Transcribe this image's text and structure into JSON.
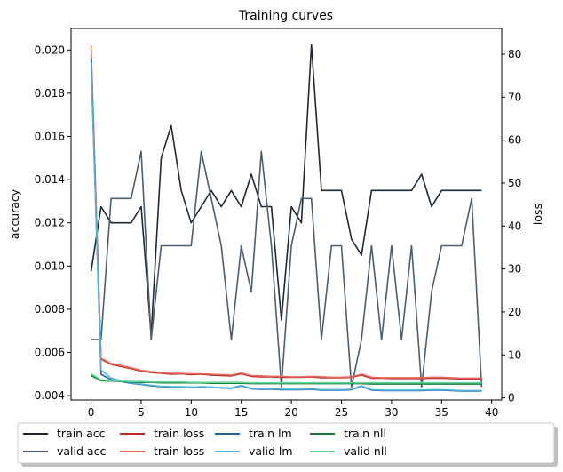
{
  "chart_data": {
    "type": "line",
    "title": "Training curves",
    "xlabel": "",
    "ylabel_left": "accuracy",
    "ylabel_right": "loss",
    "xlim": [
      -2,
      41
    ],
    "ylim_left": [
      0.0038,
      0.021
    ],
    "ylim_right": [
      -0.5,
      86
    ],
    "x_ticks": [
      0,
      5,
      10,
      15,
      20,
      25,
      30,
      35,
      40
    ],
    "x_tick_labels": [
      "0",
      "5",
      "10",
      "15",
      "20",
      "25",
      "30",
      "35",
      "40"
    ],
    "y_left_ticks": [
      0.004,
      0.006,
      0.008,
      0.01,
      0.012,
      0.014,
      0.016,
      0.018,
      0.02
    ],
    "y_left_tick_labels": [
      "0.004",
      "0.006",
      "0.008",
      "0.010",
      "0.012",
      "0.014",
      "0.016",
      "0.018",
      "0.020"
    ],
    "y_right_ticks": [
      0,
      10,
      20,
      30,
      40,
      50,
      60,
      70,
      80
    ],
    "y_right_tick_labels": [
      "0",
      "10",
      "20",
      "30",
      "40",
      "50",
      "60",
      "70",
      "80"
    ],
    "grid": false,
    "legend_position": "bottom-outside",
    "x": [
      0,
      1,
      2,
      3,
      4,
      5,
      6,
      7,
      8,
      9,
      10,
      11,
      12,
      13,
      14,
      15,
      16,
      17,
      18,
      19,
      20,
      21,
      22,
      23,
      24,
      25,
      26,
      27,
      28,
      29,
      30,
      31,
      32,
      33,
      34,
      35,
      36,
      37,
      38,
      39
    ],
    "series": [
      {
        "name": "train acc",
        "axis": "left",
        "color": "#1f2a36",
        "values": [
          0.00975,
          0.01275,
          0.012,
          0.012,
          0.012,
          0.01275,
          0.0068,
          0.015,
          0.0165,
          0.0135,
          0.012,
          0.01275,
          0.0135,
          0.01275,
          0.0135,
          0.01275,
          0.01425,
          0.01275,
          0.01275,
          0.0075,
          0.01275,
          0.012,
          0.02025,
          0.0135,
          0.0135,
          0.0135,
          0.01125,
          0.0105,
          0.0135,
          0.0135,
          0.0135,
          0.0135,
          0.0135,
          0.01425,
          0.01275,
          0.0135,
          0.0135,
          0.0135,
          0.0135,
          0.0135
        ]
      },
      {
        "name": "valid acc",
        "axis": "left",
        "color": "#4d5e6e",
        "values": [
          0.0066,
          0.0066,
          0.01313,
          0.01313,
          0.01313,
          0.01531,
          0.0066,
          0.01094,
          0.01094,
          0.01094,
          0.01094,
          0.01531,
          0.01313,
          0.01094,
          0.0066,
          0.01094,
          0.0088,
          0.01531,
          0.01094,
          0.0044,
          0.01094,
          0.01313,
          0.01313,
          0.0066,
          0.01094,
          0.01094,
          0.0044,
          0.0066,
          0.01094,
          0.0066,
          0.01094,
          0.0066,
          0.01094,
          0.0044,
          0.0088,
          0.01094,
          0.01094,
          0.01094,
          0.01313,
          0.0044
        ]
      },
      {
        "name": "train loss",
        "axis": "right",
        "color": "#b52a25",
        "values": [
          80,
          9.0,
          7.8,
          7.3,
          6.8,
          6.2,
          5.9,
          5.7,
          5.5,
          5.6,
          5.4,
          5.5,
          5.3,
          5.2,
          5.1,
          5.6,
          5.0,
          4.9,
          4.9,
          4.8,
          4.8,
          4.8,
          4.9,
          4.7,
          4.7,
          4.7,
          4.8,
          5.3,
          4.6,
          4.6,
          4.5,
          4.5,
          4.5,
          4.5,
          4.6,
          4.6,
          4.5,
          4.4,
          4.4,
          4.4
        ]
      },
      {
        "name": "train loss",
        "axis": "right",
        "color": "#e8675d",
        "values": [
          82,
          9.2,
          8.0,
          7.5,
          7.0,
          6.4,
          6.1,
          5.8,
          5.7,
          5.7,
          5.6,
          5.6,
          5.5,
          5.4,
          5.3,
          5.8,
          5.2,
          5.1,
          5.0,
          5.0,
          4.9,
          4.9,
          5.0,
          4.9,
          4.8,
          4.8,
          4.9,
          5.5,
          4.8,
          4.7,
          4.7,
          4.7,
          4.7,
          4.7,
          4.8,
          4.8,
          4.7,
          4.6,
          4.6,
          4.6
        ]
      },
      {
        "name": "train lm",
        "axis": "right",
        "color": "#1f5fa8",
        "values": [
          79,
          5.5,
          4.2,
          3.8,
          3.4,
          3.1,
          2.8,
          2.6,
          2.5,
          2.5,
          2.4,
          2.5,
          2.4,
          2.3,
          2.2,
          2.8,
          2.1,
          2.0,
          2.0,
          1.9,
          1.9,
          1.9,
          2.0,
          1.8,
          1.8,
          1.8,
          1.9,
          2.7,
          1.8,
          1.7,
          1.7,
          1.7,
          1.7,
          1.7,
          1.8,
          1.8,
          1.7,
          1.6,
          1.6,
          1.6
        ]
      },
      {
        "name": "valid lm",
        "axis": "right",
        "color": "#4fb3d9",
        "values": [
          78,
          6.5,
          4.6,
          4.0,
          3.5,
          3.2,
          2.9,
          2.7,
          2.6,
          2.6,
          2.5,
          2.6,
          2.5,
          2.4,
          2.3,
          2.9,
          2.2,
          2.1,
          2.1,
          2.0,
          2.0,
          2.0,
          2.1,
          1.9,
          1.9,
          1.9,
          2.0,
          2.8,
          1.9,
          1.8,
          1.8,
          1.8,
          1.8,
          1.8,
          1.9,
          1.9,
          1.8,
          1.7,
          1.7,
          1.7
        ]
      },
      {
        "name": "train nll",
        "axis": "right",
        "color": "#1a7d3c",
        "values": [
          5.2,
          4.0,
          3.9,
          3.8,
          3.7,
          3.6,
          3.6,
          3.5,
          3.5,
          3.5,
          3.5,
          3.5,
          3.4,
          3.4,
          3.4,
          3.4,
          3.3,
          3.3,
          3.3,
          3.3,
          3.3,
          3.3,
          3.3,
          3.3,
          3.3,
          3.3,
          3.3,
          3.3,
          3.2,
          3.2,
          3.2,
          3.2,
          3.2,
          3.2,
          3.2,
          3.2,
          3.2,
          3.2,
          3.2,
          3.2
        ]
      },
      {
        "name": "valid nll",
        "axis": "right",
        "color": "#5fd69a",
        "values": [
          5.6,
          4.2,
          4.0,
          3.9,
          3.8,
          3.8,
          3.7,
          3.7,
          3.7,
          3.7,
          3.6,
          3.6,
          3.6,
          3.6,
          3.6,
          3.6,
          3.5,
          3.5,
          3.5,
          3.5,
          3.5,
          3.5,
          3.5,
          3.5,
          3.5,
          3.5,
          3.5,
          3.5,
          3.5,
          3.5,
          3.5,
          3.5,
          3.5,
          3.5,
          3.5,
          3.5,
          3.5,
          3.5,
          3.5,
          3.5
        ]
      }
    ]
  }
}
